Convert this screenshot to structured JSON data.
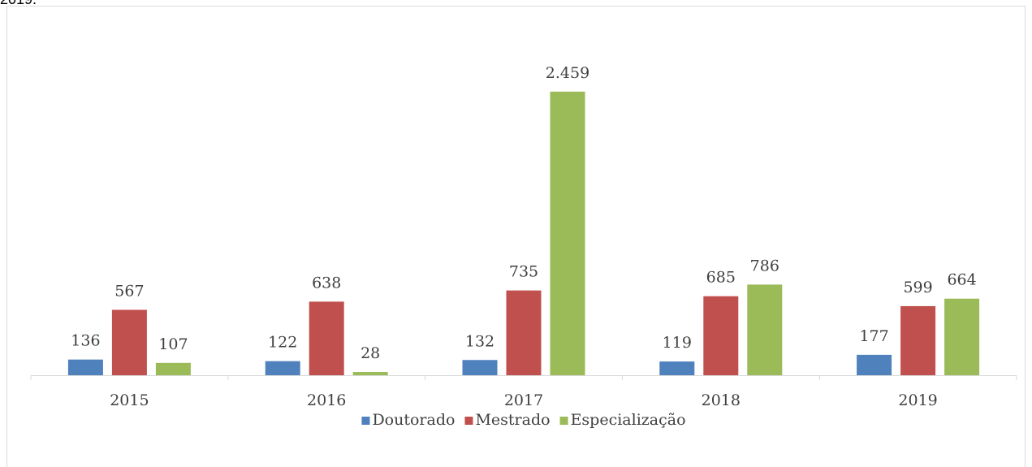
{
  "caption_fragment": "2019.",
  "chart_data": {
    "type": "bar",
    "categories": [
      "2015",
      "2016",
      "2017",
      "2018",
      "2019"
    ],
    "series": [
      {
        "name": "Doutorado",
        "color": "#4f81bd",
        "values": [
          136,
          122,
          132,
          119,
          177
        ]
      },
      {
        "name": "Mestrado",
        "color": "#c0504d",
        "values": [
          567,
          638,
          735,
          685,
          599
        ]
      },
      {
        "name": "Especialização",
        "color": "#9bbb59",
        "values": [
          107,
          28,
          2459,
          786,
          664
        ],
        "value_labels": [
          "107",
          "28",
          "2.459",
          "786",
          "664"
        ]
      }
    ],
    "ylim": [
      0,
      2500
    ],
    "legend": "bottom"
  }
}
